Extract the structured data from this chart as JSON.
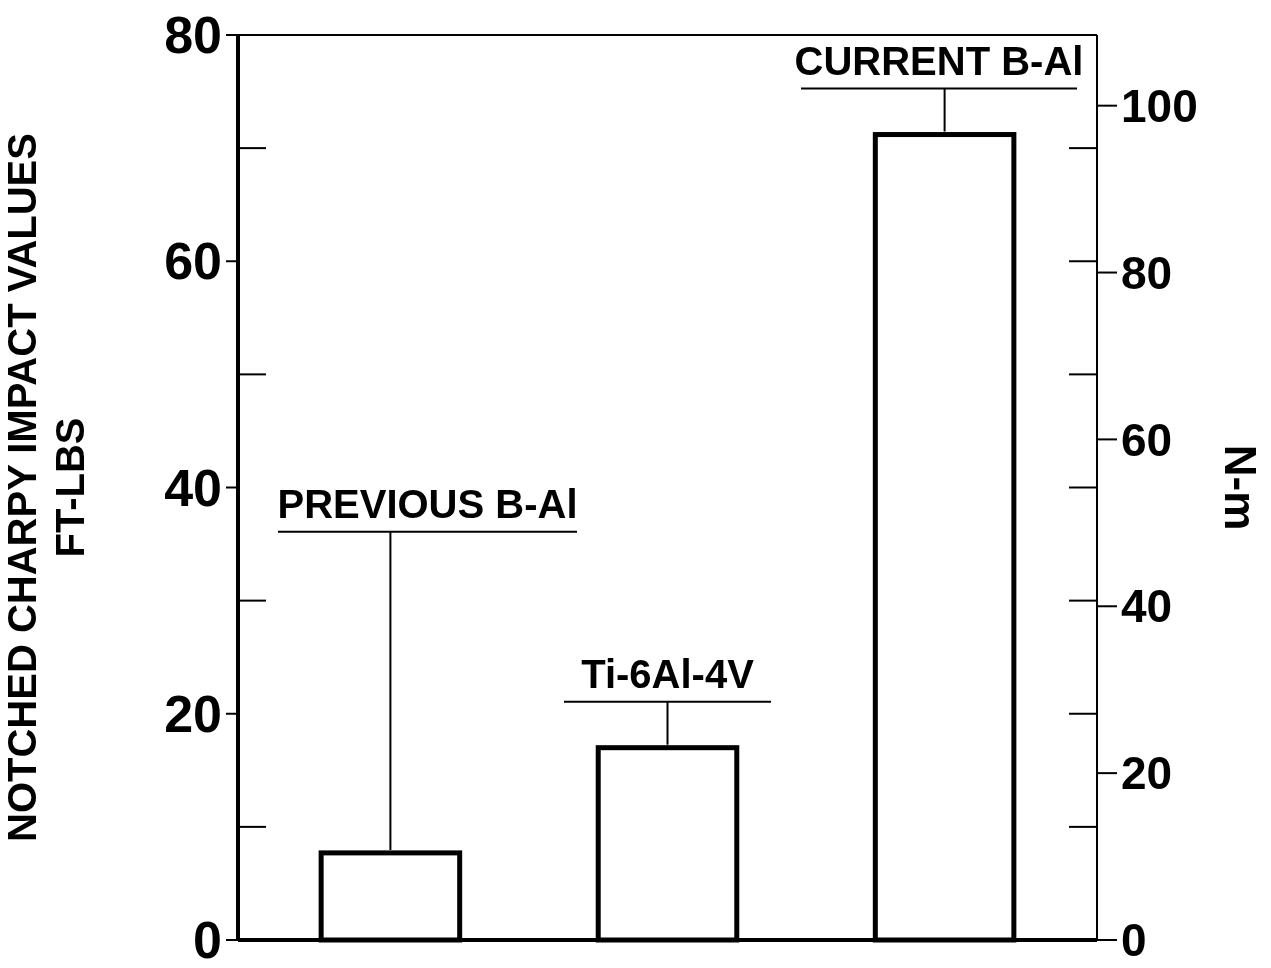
{
  "chart_data": {
    "type": "bar",
    "categories": [
      null,
      null,
      null
    ],
    "values": [
      7.7,
      17,
      71.2
    ],
    "colors": [
      "#ffffff",
      "#ffffff",
      "#ffffff"
    ],
    "ylabel": "NOTCHED CHARPY IMPACT VALUES\nFT-LBS",
    "y2label": "N-m",
    "ylim": [
      0,
      80
    ],
    "yticks": [
      0,
      20,
      40,
      60,
      80
    ],
    "y2lim": [
      0,
      108.47
    ],
    "y2ticks": [
      0,
      20,
      40,
      60,
      80,
      100
    ],
    "annotations": [
      "PREVIOUS B-Al",
      "Ti-6Al-4V",
      "CURRENT B-Al"
    ],
    "grid": false
  }
}
